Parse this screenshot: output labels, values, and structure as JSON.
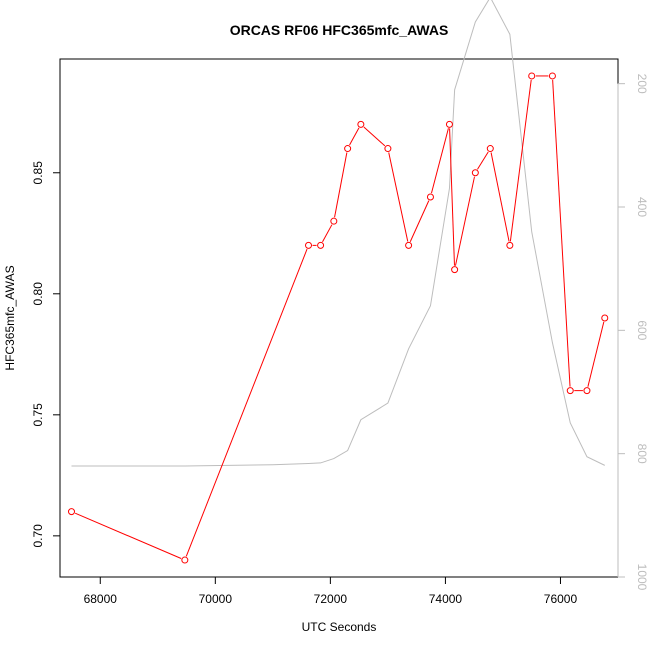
{
  "chart_data": {
    "type": "line",
    "title": "ORCAS RF06 HFC365mfc_AWAS",
    "xlabel": "UTC Seconds",
    "ylabel": "HFC365mfc_AWAS",
    "xlim": [
      67300,
      77000
    ],
    "ylim": [
      0.683,
      0.897
    ],
    "x_ticks": [
      68000,
      70000,
      72000,
      74000,
      76000
    ],
    "x_tick_labels": [
      "68000",
      "70000",
      "72000",
      "74000",
      "76000"
    ],
    "y_ticks": [
      0.7,
      0.75,
      0.8,
      0.85
    ],
    "y_tick_labels": [
      "0.70",
      "0.75",
      "0.80",
      "0.85"
    ],
    "y2lim": [
      1000,
      160
    ],
    "y2_ticks": [
      200,
      400,
      600,
      800,
      1000
    ],
    "y2_tick_labels": [
      "200",
      "400",
      "600",
      "800",
      "1000"
    ],
    "series": [
      {
        "role": "primary",
        "color": "#ff0000",
        "marker": "open-circle",
        "x": [
          67500,
          69470,
          71620,
          71830,
          72060,
          72300,
          72530,
          73000,
          73360,
          73740,
          74070,
          74160,
          74520,
          74780,
          75120,
          75500,
          75860,
          76170,
          76460,
          76770
        ],
        "y": [
          0.71,
          0.69,
          0.82,
          0.82,
          0.83,
          0.86,
          0.87,
          0.86,
          0.82,
          0.84,
          0.87,
          0.81,
          0.85,
          0.86,
          0.82,
          0.89,
          0.89,
          0.76,
          0.76,
          0.79
        ]
      },
      {
        "role": "secondary",
        "color": "#bdbdbd",
        "axis": "right",
        "x": [
          67500,
          69470,
          71000,
          71620,
          71830,
          72060,
          72300,
          72530,
          73000,
          73360,
          73740,
          74070,
          74160,
          74520,
          74780,
          75120,
          75500,
          75860,
          76170,
          76460,
          76770
        ],
        "y": [
          820,
          820,
          818,
          816,
          815,
          808,
          795,
          745,
          718,
          630,
          560,
          370,
          210,
          100,
          60,
          120,
          440,
          620,
          750,
          805,
          819
        ]
      }
    ]
  }
}
